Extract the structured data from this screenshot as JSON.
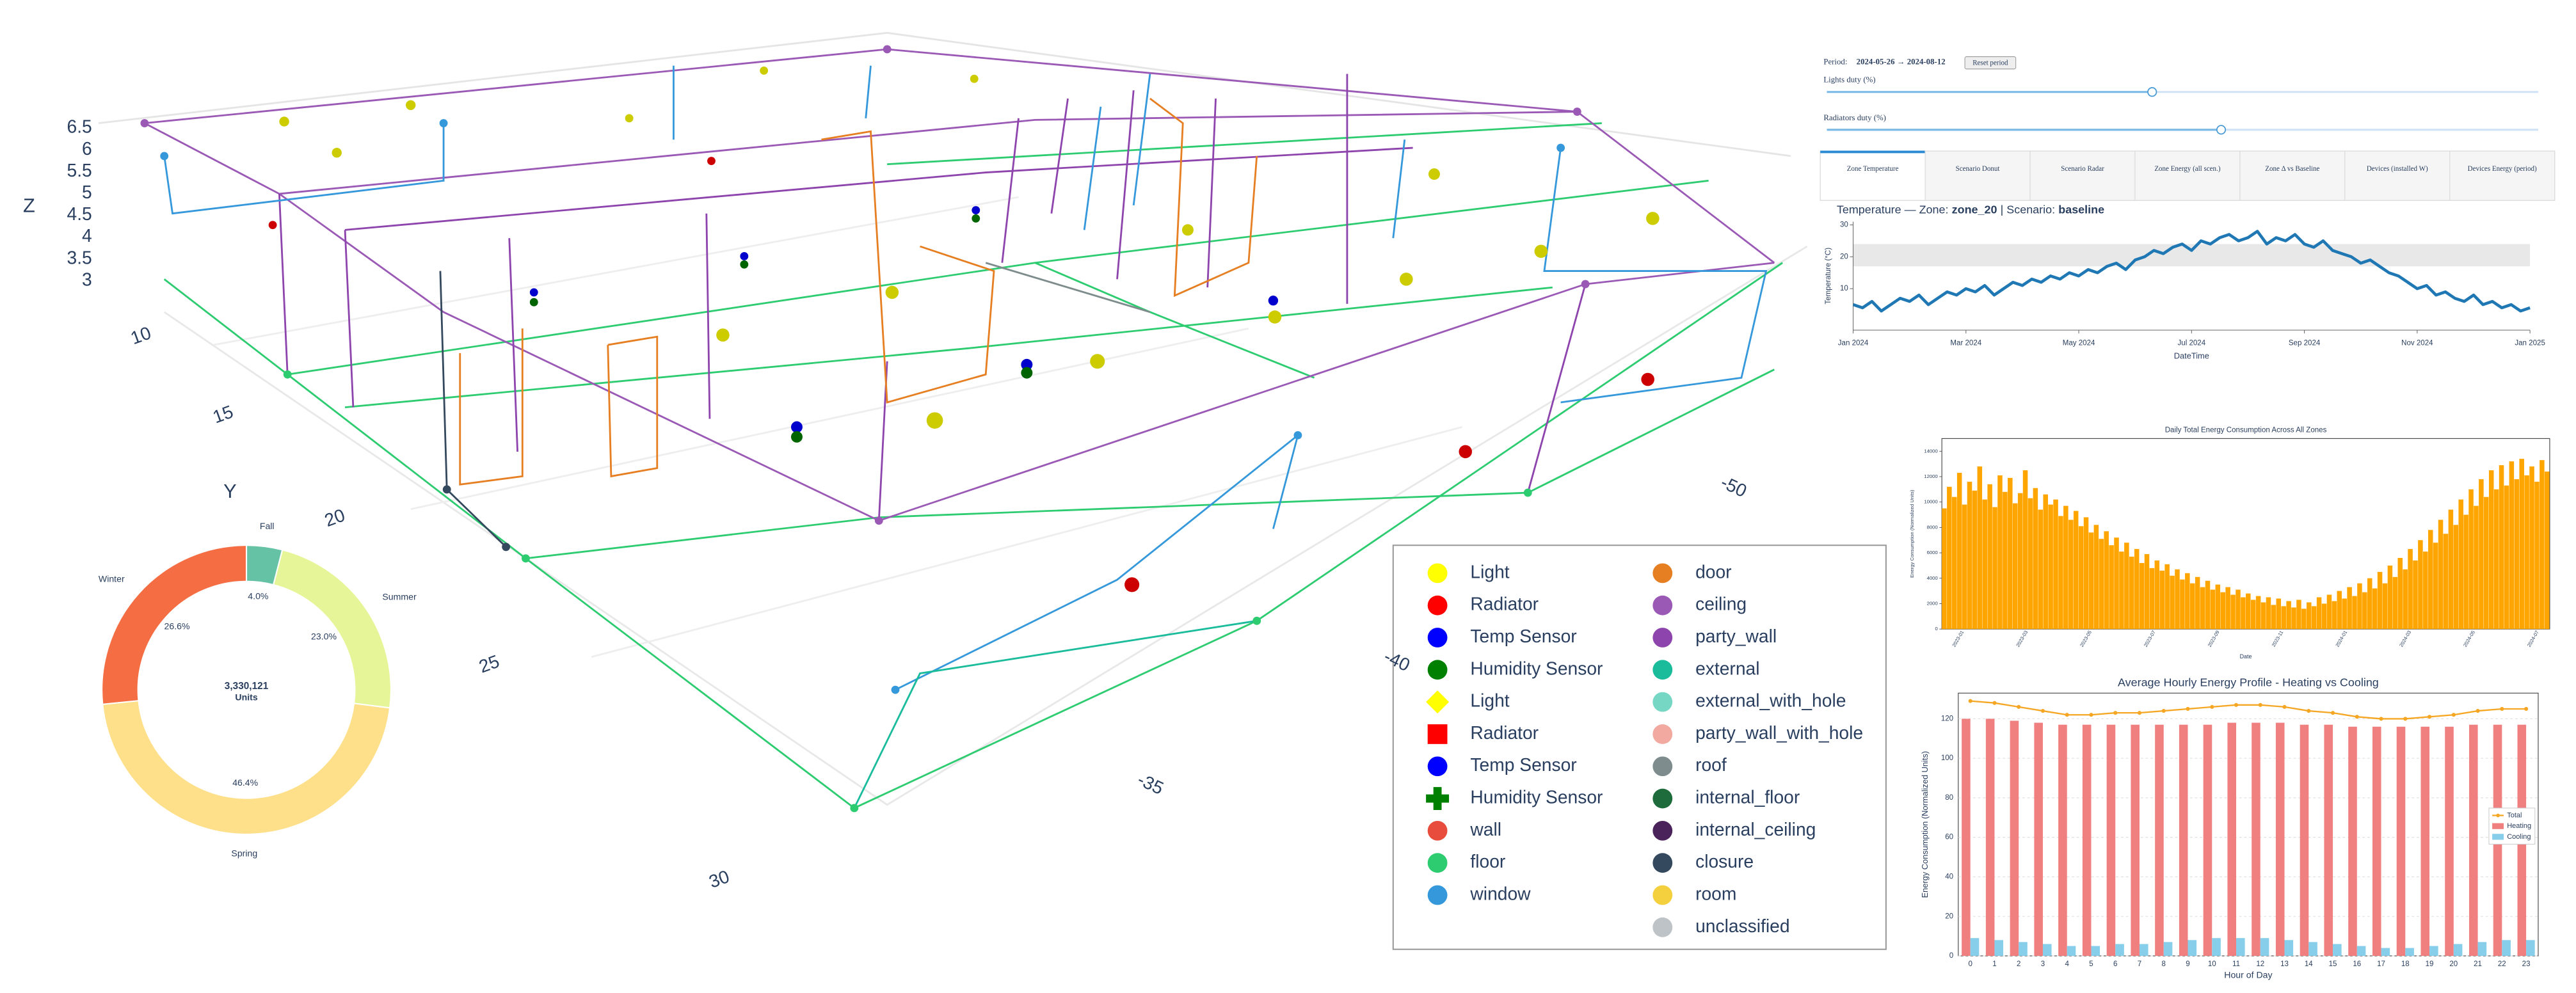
{
  "controls": {
    "period_label": "Period:",
    "period_value": "2024-05-26 → 2024-08-12",
    "reset_button": "Reset period",
    "sliders": [
      {
        "label": "Lights duty (%)"
      },
      {
        "label": "Radiators duty (%)"
      }
    ]
  },
  "tabs": [
    "Zone Temperature",
    "Scenario Donut",
    "Scenario Radar",
    "Zone Energy (all scen.)",
    "Zone Δ vs Baseline",
    "Devices (installed W)",
    "Devices Energy (period)"
  ],
  "active_tab": 0,
  "chart_data": [
    {
      "type": "scatter3d",
      "zlabel": "Z",
      "ylabel": "Y",
      "zticks": [
        3,
        3.5,
        4,
        4.5,
        5,
        5.5,
        6,
        6.5
      ],
      "yticks": [
        10,
        15,
        20,
        25,
        30
      ],
      "xticks": [
        -50,
        -40,
        -35
      ],
      "legend": [
        {
          "name": "Light",
          "color": "#ffff00",
          "symbol": "circle"
        },
        {
          "name": "Radiator",
          "color": "#ff0000",
          "symbol": "circle"
        },
        {
          "name": "Temp Sensor",
          "color": "#0000ff",
          "symbol": "circle"
        },
        {
          "name": "Humidity Sensor",
          "color": "#008000",
          "symbol": "circle"
        },
        {
          "name": "Light",
          "color": "#ffff00",
          "symbol": "diamond"
        },
        {
          "name": "Radiator",
          "color": "#ff0000",
          "symbol": "square"
        },
        {
          "name": "Temp Sensor",
          "color": "#0000ff",
          "symbol": "circle"
        },
        {
          "name": "Humidity Sensor",
          "color": "#008000",
          "symbol": "cross"
        },
        {
          "name": "wall",
          "color": "#e74c3c",
          "symbol": "circle"
        },
        {
          "name": "floor",
          "color": "#2ecc71",
          "symbol": "circle"
        },
        {
          "name": "window",
          "color": "#3498db",
          "symbol": "circle"
        },
        {
          "name": "door",
          "color": "#e67e22",
          "symbol": "circle"
        },
        {
          "name": "ceiling",
          "color": "#9b59b6",
          "symbol": "circle"
        },
        {
          "name": "party_wall",
          "color": "#8e44ad",
          "symbol": "circle"
        },
        {
          "name": "external",
          "color": "#1abc9c",
          "symbol": "circle"
        },
        {
          "name": "external_with_hole",
          "color": "#76d7c4",
          "symbol": "circle"
        },
        {
          "name": "party_wall_with_hole",
          "color": "#f1a9a0",
          "symbol": "circle"
        },
        {
          "name": "roof",
          "color": "#7f8c8d",
          "symbol": "circle"
        },
        {
          "name": "internal_floor",
          "color": "#1e6b3c",
          "symbol": "circle"
        },
        {
          "name": "internal_ceiling",
          "color": "#4a235a",
          "symbol": "circle"
        },
        {
          "name": "closure",
          "color": "#34495e",
          "symbol": "circle"
        },
        {
          "name": "room",
          "color": "#f4d03f",
          "symbol": "circle"
        },
        {
          "name": "unclassified",
          "color": "#bdc3c7",
          "symbol": "circle"
        }
      ]
    },
    {
      "type": "pie",
      "hole": true,
      "categories": [
        "Fall",
        "Summer",
        "Spring",
        "Winter"
      ],
      "values": [
        4.0,
        23.0,
        46.4,
        26.6
      ],
      "value_labels": [
        "4.0%",
        "23.0%",
        "46.4%",
        "26.6%"
      ],
      "colors": [
        "#66c2a5",
        "#e6f598",
        "#fee08b",
        "#f46d43"
      ],
      "total": {
        "value": 3330121,
        "label": "3,330,121"
      },
      "total_unit": "Units"
    },
    {
      "type": "line",
      "title": {
        "prefix": "Temperature — Zone:",
        "zone": "zone_20",
        "mid": "| Scenario:",
        "scenario": "baseline"
      },
      "xlabel": "DateTime",
      "ylabel": "Temperature (°C)",
      "xticks": [
        "Jan 2024",
        "Mar 2024",
        "May 2024",
        "Jul 2024",
        "Sep 2024",
        "Nov 2024",
        "Jan 2025"
      ],
      "ylim": [
        -3,
        31
      ],
      "yticks": [
        10,
        20,
        30
      ],
      "band": [
        17,
        24
      ],
      "color": "#1f77b4",
      "values": [
        5,
        4,
        6,
        3,
        5,
        7,
        6,
        8,
        5,
        7,
        9,
        8,
        10,
        9,
        11,
        8,
        10,
        12,
        11,
        13,
        12,
        14,
        13,
        15,
        14,
        16,
        15,
        17,
        18,
        16,
        19,
        20,
        22,
        21,
        23,
        24,
        22,
        25,
        24,
        26,
        27,
        25,
        26,
        28,
        24,
        26,
        25,
        27,
        24,
        23,
        25,
        22,
        21,
        20,
        18,
        19,
        17,
        15,
        14,
        12,
        10,
        11,
        8,
        9,
        7,
        6,
        8,
        5,
        6,
        4,
        5,
        3,
        4
      ]
    },
    {
      "type": "bar",
      "title": "Daily Total Energy Consumption Across All Zones",
      "xlabel": "Date",
      "ylabel": "Energy Consumption (Normalized Units)",
      "xticks": [
        "2023-01",
        "2023-03",
        "2023-05",
        "2023-07",
        "2023-09",
        "2023-11",
        "2024-01",
        "2024-03",
        "2024-05",
        "2024-07"
      ],
      "ylim": [
        0,
        15000
      ],
      "yticks": [
        0,
        2000,
        4000,
        6000,
        8000,
        10000,
        12000,
        14000
      ],
      "color": "#ffa500",
      "values": [
        9500,
        11200,
        10400,
        12300,
        9800,
        11600,
        10900,
        12800,
        10200,
        11400,
        9600,
        12100,
        10800,
        11900,
        9900,
        10700,
        12500,
        10300,
        11100,
        9400,
        10600,
        9800,
        10200,
        8900,
        9700,
        8600,
        9300,
        8100,
        8800,
        7600,
        8200,
        7100,
        7700,
        6600,
        7200,
        6100,
        6800,
        5700,
        6300,
        5200,
        5900,
        4800,
        5400,
        4600,
        5100,
        4200,
        4700,
        3900,
        4400,
        3600,
        4100,
        3300,
        3800,
        3100,
        3500,
        2900,
        3300,
        2700,
        3100,
        2500,
        2800,
        2300,
        2600,
        2100,
        2500,
        1900,
        2400,
        1800,
        2200,
        1700,
        2300,
        1600,
        2100,
        1800,
        2500,
        2000,
        2700,
        2200,
        3000,
        2400,
        3300,
        2600,
        3600,
        2900,
        4000,
        3200,
        4500,
        3600,
        5000,
        4100,
        5600,
        4700,
        6300,
        5400,
        7000,
        6100,
        7800,
        6800,
        8600,
        7500,
        9400,
        8200,
        10200,
        9000,
        11000,
        9700,
        11800,
        10400,
        12500,
        11000,
        12900,
        11300,
        13200,
        11800,
        13400,
        12100,
        12800,
        11600,
        13300,
        12400
      ]
    },
    {
      "type": "bar_line",
      "title": "Average Hourly Energy Profile - Heating vs Cooling",
      "xlabel": "Hour of Day",
      "ylabel": "Energy Consumption (Normalized Units)",
      "categories": [
        "0",
        "1",
        "2",
        "3",
        "4",
        "5",
        "6",
        "7",
        "8",
        "9",
        "10",
        "11",
        "12",
        "13",
        "14",
        "15",
        "16",
        "17",
        "18",
        "19",
        "20",
        "21",
        "22",
        "23"
      ],
      "ylim": [
        0,
        133
      ],
      "yticks": [
        0,
        20,
        40,
        60,
        80,
        100,
        120
      ],
      "grid": true,
      "legend": "right",
      "series": [
        {
          "name": "Total",
          "color": "#f5a623",
          "kind": "line",
          "values": [
            129,
            128,
            126,
            124,
            122,
            122,
            123,
            123,
            124,
            125,
            126,
            127,
            127,
            126,
            124,
            123,
            121,
            120,
            120,
            121,
            122,
            124,
            125,
            125
          ]
        },
        {
          "name": "Heating",
          "color": "#f08080",
          "kind": "bar",
          "values": [
            120,
            120,
            119,
            118,
            117,
            117,
            117,
            117,
            117,
            117,
            117,
            118,
            118,
            118,
            117,
            117,
            116,
            116,
            116,
            116,
            116,
            117,
            117,
            117
          ]
        },
        {
          "name": "Cooling",
          "color": "#87ceeb",
          "kind": "bar",
          "values": [
            9,
            8,
            7,
            6,
            5,
            5,
            6,
            6,
            7,
            8,
            9,
            9,
            9,
            8,
            7,
            6,
            5,
            4,
            4,
            5,
            6,
            7,
            8,
            8
          ]
        }
      ]
    }
  ]
}
